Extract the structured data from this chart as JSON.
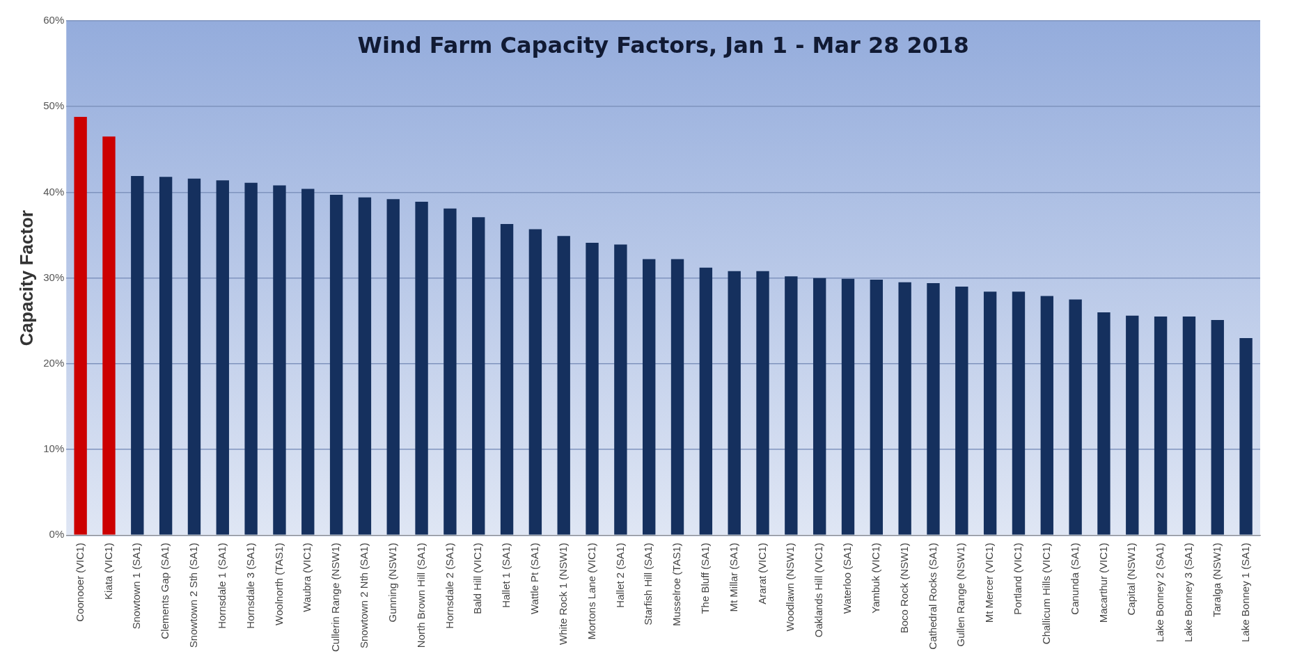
{
  "chart_data": {
    "type": "bar",
    "title": "Wind Farm Capacity Factors, Jan 1 - Mar 28 2018",
    "ylabel": "Capacity Factor",
    "categories": [
      "Coonooer (VIC1)",
      "Kiata (VIC1)",
      "Snowtown 1 (SA1)",
      "Clements Gap (SA1)",
      "Snowtown 2 Sth (SA1)",
      "Hornsdale 1 (SA1)",
      "Hornsdale 3 (SA1)",
      "Woolnorth (TAS1)",
      "Waubra (VIC1)",
      "Cullerin Range (NSW1)",
      "Snowtown 2 Nth (SA1)",
      "Gunning (NSW1)",
      "North Brown Hill (SA1)",
      "Hornsdale 2 (SA1)",
      "Bald Hill (VIC1)",
      "Hallet 1 (SA1)",
      "Wattle Pt (SA1)",
      "White Rock 1 (NSW1)",
      "Mortons Lane (VIC1)",
      "Hallet 2 (SA1)",
      "Starfish Hill (SA1)",
      "Musselroe (TAS1)",
      "The Bluff (SA1)",
      "Mt Millar (SA1)",
      "Ararat (VIC1)",
      "Woodlawn (NSW1)",
      "Oaklands Hill (VIC1)",
      "Waterloo (SA1)",
      "Yambuk (VIC1)",
      "Boco Rock (NSW1)",
      "Cathedral Rocks (SA1)",
      "Gullen Range (NSW1)",
      "Mt Mercer (VIC1)",
      "Portland (VIC1)",
      "Challicum Hills (VIC1)",
      "Canunda (SA1)",
      "Macarthur (VIC1)",
      "Capital (NSW1)",
      "Lake Bonney 2 (SA1)",
      "Lake Bonney 3 (SA1)",
      "Taralga (NSW1)",
      "Lake Bonney 1 (SA1)"
    ],
    "values": [
      48.8,
      46.5,
      41.9,
      41.8,
      41.6,
      41.4,
      41.1,
      40.8,
      40.4,
      39.7,
      39.4,
      39.2,
      38.9,
      38.1,
      37.1,
      36.3,
      35.7,
      34.9,
      34.1,
      33.9,
      32.2,
      32.2,
      31.2,
      30.8,
      30.8,
      30.2,
      30.0,
      29.9,
      29.8,
      29.5,
      29.4,
      29.0,
      28.4,
      28.4,
      27.9,
      27.5,
      26.0,
      25.6,
      25.5,
      25.5,
      25.1,
      23.0
    ],
    "colors": [
      "#cc0000",
      "#cc0000",
      "#15305e",
      "#15305e",
      "#15305e",
      "#15305e",
      "#15305e",
      "#15305e",
      "#15305e",
      "#15305e",
      "#15305e",
      "#15305e",
      "#15305e",
      "#15305e",
      "#15305e",
      "#15305e",
      "#15305e",
      "#15305e",
      "#15305e",
      "#15305e",
      "#15305e",
      "#15305e",
      "#15305e",
      "#15305e",
      "#15305e",
      "#15305e",
      "#15305e",
      "#15305e",
      "#15305e",
      "#15305e",
      "#15305e",
      "#15305e",
      "#15305e",
      "#15305e",
      "#15305e",
      "#15305e",
      "#15305e",
      "#15305e",
      "#15305e",
      "#15305e",
      "#15305e",
      "#15305e"
    ],
    "ylim": [
      0,
      60
    ],
    "yticks": [
      {
        "value": 0,
        "label": "0%"
      },
      {
        "value": 10,
        "label": "10%"
      },
      {
        "value": 20,
        "label": "20%"
      },
      {
        "value": 30,
        "label": "30%"
      },
      {
        "value": 40,
        "label": "40%"
      },
      {
        "value": 50,
        "label": "50%"
      },
      {
        "value": 60,
        "label": "60%"
      }
    ],
    "grid": "y",
    "legend": false
  }
}
